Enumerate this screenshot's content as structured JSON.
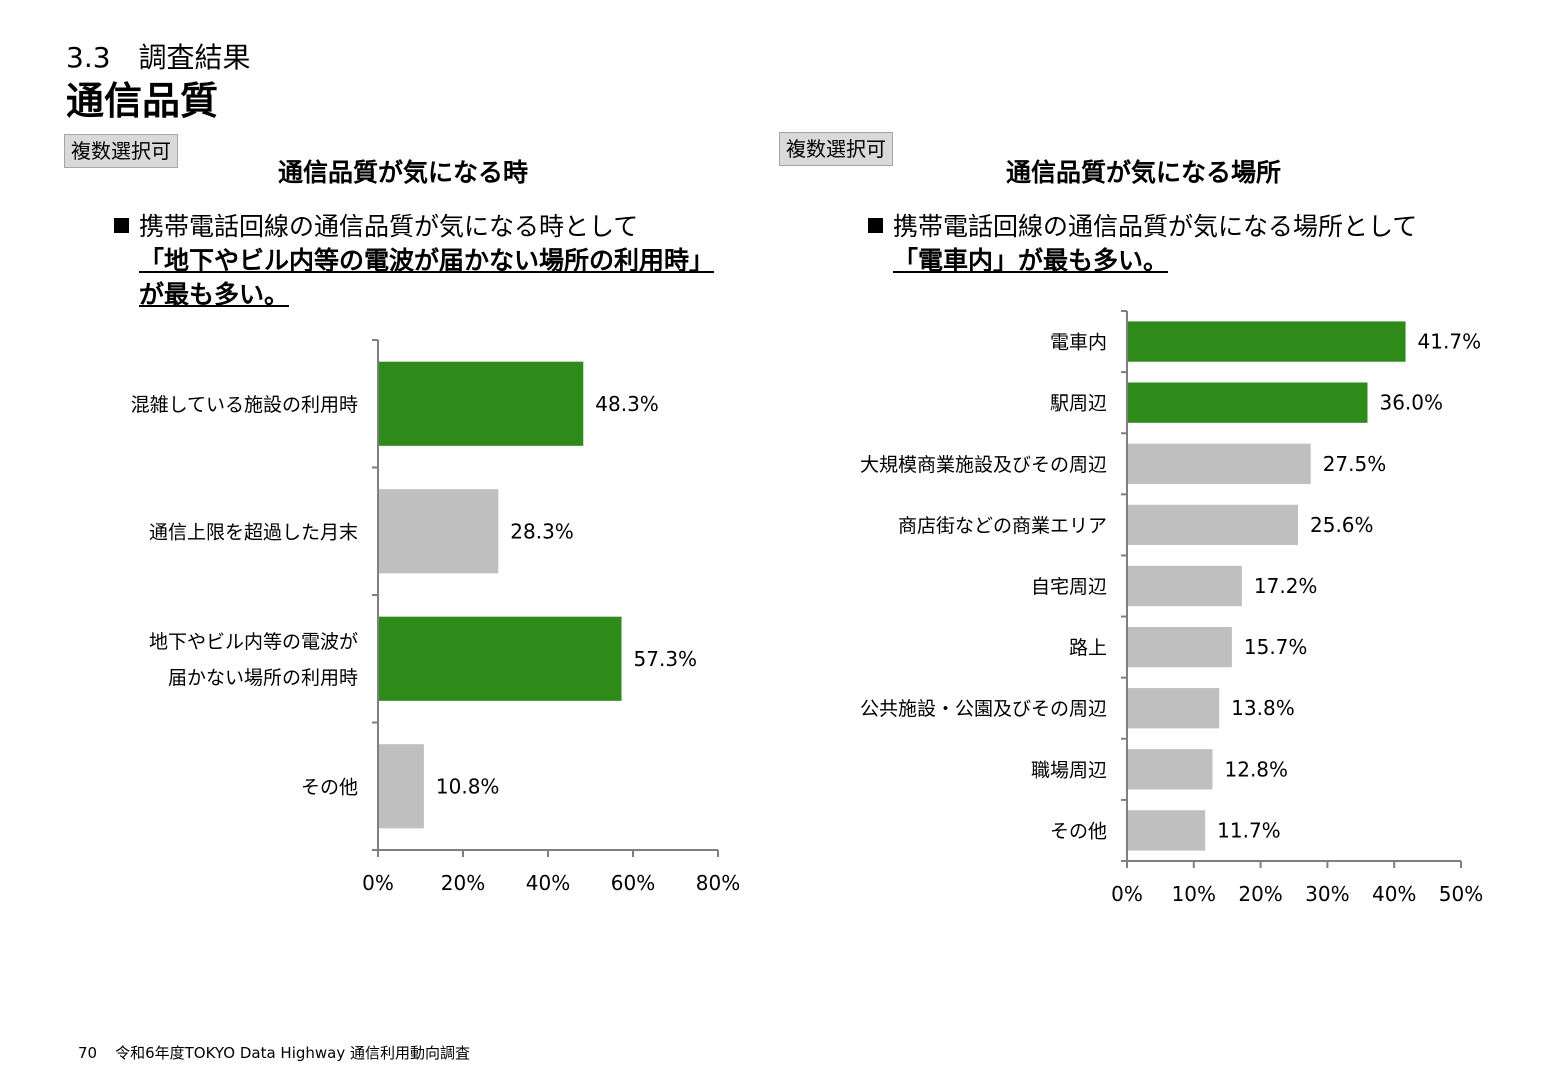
{
  "header": {
    "section": "3.3　調査結果",
    "title": "通信品質"
  },
  "colors": {
    "highlight": "#2e8b1a",
    "normal": "#bfbfbf",
    "axis": "#7f7f7f"
  },
  "left_panel": {
    "badge": "複数選択可",
    "title": "通信品質が気になる時",
    "summary": {
      "line1": "携帯電話回線の通信品質が気になる時として",
      "line2": "「地下やビル内等の電波が届かない場所の利用時」",
      "line3": "が最も多い。"
    }
  },
  "right_panel": {
    "badge": "複数選択可",
    "title": "通信品質が気になる場所",
    "summary": {
      "line1": "携帯電話回線の通信品質が気になる場所として",
      "line2": "「電車内」が最も多い。"
    }
  },
  "chart_data": [
    {
      "type": "bar",
      "orientation": "horizontal",
      "categories": [
        "混雑している施設の利用時",
        "通信上限を超過した月末",
        "地下やビル内等の電波が届かない場所の利用時",
        "その他"
      ],
      "category_lines": [
        [
          "混雑している施設の利用時"
        ],
        [
          "通信上限を超過した月末"
        ],
        [
          "地下やビル内等の電波が",
          "届かない場所の利用時"
        ],
        [
          "その他"
        ]
      ],
      "values": [
        48.3,
        28.3,
        57.3,
        10.8
      ],
      "labels": [
        "48.3%",
        "28.3%",
        "57.3%",
        "10.8%"
      ],
      "highlight": [
        true,
        false,
        true,
        false
      ],
      "xlim": [
        0,
        80
      ],
      "xticks": [
        0,
        20,
        40,
        60,
        80
      ],
      "tick_labels": [
        "0%",
        "20%",
        "40%",
        "60%",
        "80%"
      ],
      "grid": false
    },
    {
      "type": "bar",
      "orientation": "horizontal",
      "categories": [
        "電車内",
        "駅周辺",
        "大規模商業施設及びその周辺",
        "商店街などの商業エリア",
        "自宅周辺",
        "路上",
        "公共施設・公園及びその周辺",
        "職場周辺",
        "その他"
      ],
      "values": [
        41.7,
        36.0,
        27.5,
        25.6,
        17.2,
        15.7,
        13.8,
        12.8,
        11.7
      ],
      "labels": [
        "41.7%",
        "36.0%",
        "27.5%",
        "25.6%",
        "17.2%",
        "15.7%",
        "13.8%",
        "12.8%",
        "11.7%"
      ],
      "highlight": [
        true,
        true,
        false,
        false,
        false,
        false,
        false,
        false,
        false
      ],
      "xlim": [
        0,
        50
      ],
      "xticks": [
        0,
        10,
        20,
        30,
        40,
        50
      ],
      "tick_labels": [
        "0%",
        "10%",
        "20%",
        "30%",
        "40%",
        "50%"
      ],
      "grid": false
    }
  ],
  "footer": {
    "page_number": "70",
    "text": "令和6年度TOKYO Data Highway 通信利用動向調査"
  }
}
